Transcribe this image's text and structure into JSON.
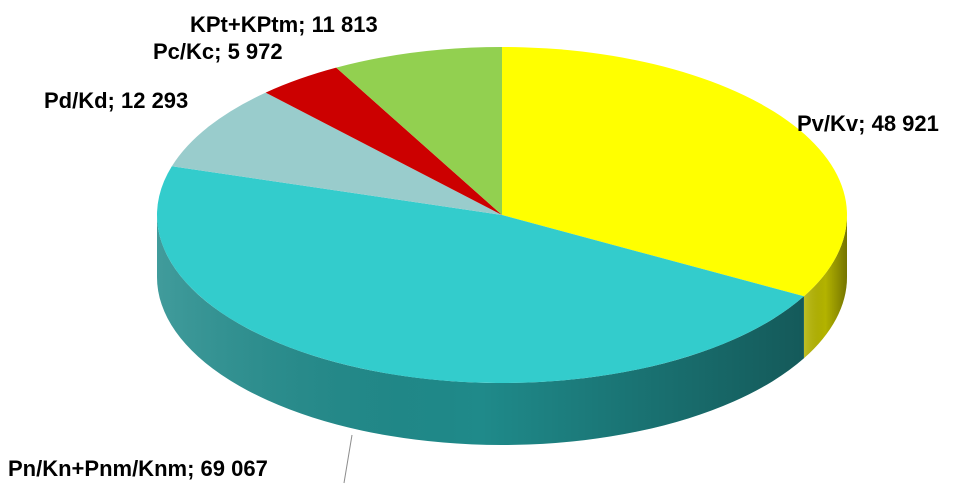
{
  "chart_data": {
    "type": "pie",
    "title": "",
    "slices": [
      {
        "name": "Pv/Kv",
        "value": 48921,
        "label": "Pv/Kv; 48 921",
        "color": "#ffff00",
        "side_color": "#b3b300"
      },
      {
        "name": "Pn/Kn+Pnm/Knm",
        "value": 69067,
        "label": "Pn/Kn+Pnm/Knm; 69 067",
        "color": "#33cccc",
        "side_color": "#1f8a8a"
      },
      {
        "name": "Pd/Kd",
        "value": 12293,
        "label": "Pd/Kd; 12 293",
        "color": "#99cccc",
        "side_color": "#6a9a9a"
      },
      {
        "name": "Pc/Kc",
        "value": 5972,
        "label": "Pc/Kc; 5 972",
        "color": "#cc0000",
        "side_color": "#8a0000"
      },
      {
        "name": "KPt+KPtm",
        "value": 11813,
        "label": "KPt+KPtm; 11 813",
        "color": "#92d050",
        "side_color": "#5f8f30"
      }
    ],
    "legend": "none",
    "style": "3d-pie"
  }
}
